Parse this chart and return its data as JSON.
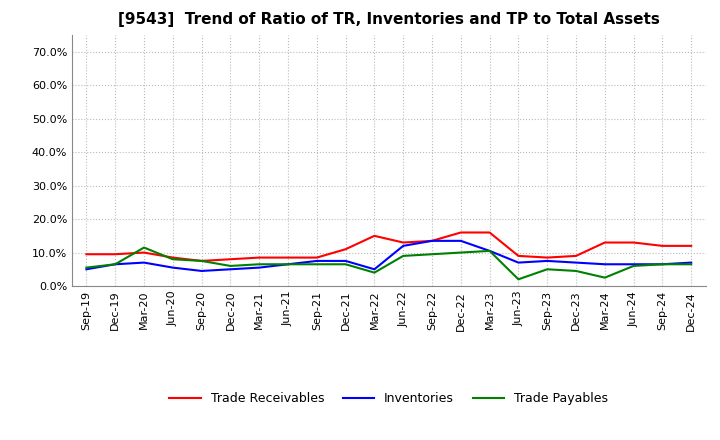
{
  "title": "[9543]  Trend of Ratio of TR, Inventories and TP to Total Assets",
  "labels": [
    "Sep-19",
    "Dec-19",
    "Mar-20",
    "Jun-20",
    "Sep-20",
    "Dec-20",
    "Mar-21",
    "Jun-21",
    "Sep-21",
    "Dec-21",
    "Mar-22",
    "Jun-22",
    "Sep-22",
    "Dec-22",
    "Mar-23",
    "Jun-23",
    "Sep-23",
    "Dec-23",
    "Mar-24",
    "Jun-24",
    "Sep-24",
    "Dec-24"
  ],
  "trade_receivables": [
    9.5,
    9.5,
    10.0,
    8.5,
    7.5,
    8.0,
    8.5,
    8.5,
    8.5,
    11.0,
    15.0,
    13.0,
    13.5,
    16.0,
    16.0,
    9.0,
    8.5,
    9.0,
    13.0,
    13.0,
    12.0,
    12.0
  ],
  "inventories": [
    5.0,
    6.5,
    7.0,
    5.5,
    4.5,
    5.0,
    5.5,
    6.5,
    7.5,
    7.5,
    5.0,
    12.0,
    13.5,
    13.5,
    10.5,
    7.0,
    7.5,
    7.0,
    6.5,
    6.5,
    6.5,
    7.0
  ],
  "trade_payables": [
    5.5,
    6.5,
    11.5,
    8.0,
    7.5,
    6.0,
    6.5,
    6.5,
    6.5,
    6.5,
    4.0,
    9.0,
    9.5,
    10.0,
    10.5,
    2.0,
    5.0,
    4.5,
    2.5,
    6.0,
    6.5,
    6.5
  ],
  "tr_color": "#FF0000",
  "inv_color": "#0000FF",
  "tp_color": "#008000",
  "ylim": [
    0,
    75
  ],
  "yticks": [
    0,
    10,
    20,
    30,
    40,
    50,
    60,
    70
  ],
  "ytick_labels": [
    "0.0%",
    "10.0%",
    "20.0%",
    "30.0%",
    "40.0%",
    "50.0%",
    "60.0%",
    "70.0%"
  ],
  "grid_color": "#bbbbbb",
  "background_color": "#ffffff",
  "legend_labels": [
    "Trade Receivables",
    "Inventories",
    "Trade Payables"
  ],
  "title_fontsize": 11,
  "tick_fontsize": 8,
  "legend_fontsize": 9
}
